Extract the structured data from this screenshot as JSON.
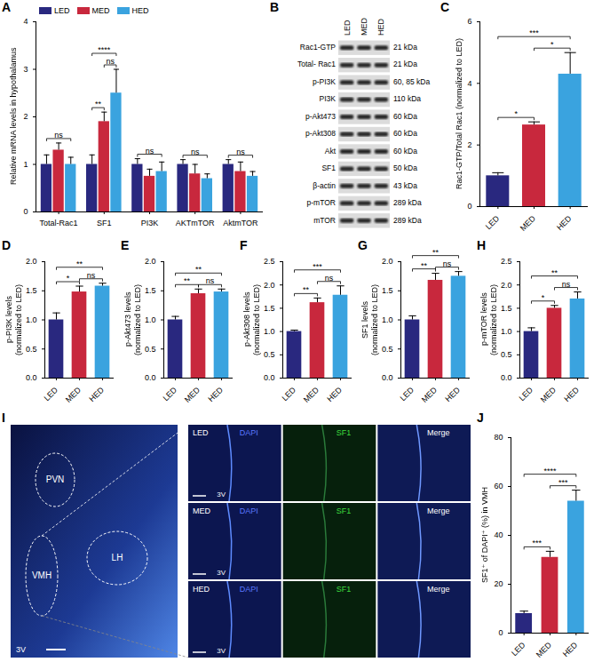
{
  "chart_data": [
    {
      "panel": "A",
      "type": "bar",
      "ylabel": "Relative mRNA levels in hypothalamus",
      "categories": [
        "Total-Rac1",
        "SF1",
        "PI3K",
        "AKTmTOR",
        "AktmTOR"
      ],
      "series": [
        {
          "name": "LED",
          "color": "#29287f",
          "values": [
            1.0,
            1.0,
            1.0,
            1.0,
            1.0
          ],
          "errors": [
            0.2,
            0.2,
            0.12,
            0.1,
            0.1
          ]
        },
        {
          "name": "MED",
          "color": "#c8283d",
          "values": [
            1.3,
            1.9,
            0.75,
            0.8,
            0.85
          ],
          "errors": [
            0.15,
            0.2,
            0.15,
            0.2,
            0.2
          ]
        },
        {
          "name": "HED",
          "color": "#3aa3df",
          "values": [
            1.0,
            2.5,
            0.85,
            0.7,
            0.75
          ],
          "errors": [
            0.15,
            0.5,
            0.2,
            0.1,
            0.1
          ]
        }
      ],
      "ylim": [
        0,
        4
      ],
      "yticks": [
        0,
        1,
        2,
        3,
        4
      ],
      "legend": "top-left",
      "significance": [
        {
          "category": "Total-Rac1",
          "pair": [
            "LED",
            "HED"
          ],
          "label": "ns"
        },
        {
          "category": "SF1",
          "pair": [
            "LED",
            "MED"
          ],
          "label": "**"
        },
        {
          "category": "SF1",
          "pair": [
            "MED",
            "HED"
          ],
          "label": "ns"
        },
        {
          "category": "SF1",
          "pair": [
            "LED",
            "HED"
          ],
          "label": "****"
        },
        {
          "category": "PI3K",
          "pair": [
            "LED",
            "HED"
          ],
          "label": "ns"
        },
        {
          "category": "AKTmTOR",
          "pair": [
            "LED",
            "HED"
          ],
          "label": "ns"
        },
        {
          "category": "AktmTOR",
          "pair": [
            "LED",
            "HED"
          ],
          "label": "ns"
        }
      ]
    },
    {
      "panel": "C",
      "type": "bar",
      "ylabel": "Rac1-GTP/Total Rac1 (normalized to LED)",
      "categories": [
        "LED",
        "MED",
        "HED"
      ],
      "values": [
        1.0,
        2.65,
        4.3
      ],
      "errors": [
        0.1,
        0.1,
        0.7
      ],
      "colors": [
        "#29287f",
        "#c8283d",
        "#3aa3df"
      ],
      "ylim": [
        0,
        6
      ],
      "yticks": [
        0,
        2,
        4,
        6
      ],
      "significance": [
        {
          "pair": [
            "LED",
            "MED"
          ],
          "label": "*"
        },
        {
          "pair": [
            "LED",
            "HED"
          ],
          "label": "***"
        },
        {
          "pair": [
            "MED",
            "HED"
          ],
          "label": "*"
        }
      ]
    },
    {
      "panel": "D",
      "type": "bar",
      "ylabel": "p-PI3K levels (normalized to LED)",
      "categories": [
        "LED",
        "MED",
        "HED"
      ],
      "values": [
        1.0,
        1.48,
        1.58
      ],
      "errors": [
        0.12,
        0.1,
        0.05
      ],
      "colors": [
        "#29287f",
        "#c8283d",
        "#3aa3df"
      ],
      "ylim": [
        0,
        2
      ],
      "yticks": [
        {
          "value": 0,
          "label": "0.0"
        },
        0.5,
        {
          "value": 1,
          "label": "1.0"
        },
        1.5,
        {
          "value": 2,
          "label": "2.0"
        }
      ],
      "significance": [
        {
          "pair": [
            "LED",
            "MED"
          ],
          "label": "*"
        },
        {
          "pair": [
            "LED",
            "HED"
          ],
          "label": "**"
        },
        {
          "pair": [
            "MED",
            "HED"
          ],
          "label": "ns"
        }
      ]
    },
    {
      "panel": "E",
      "type": "bar",
      "ylabel": "p-Akt473 levels (normalized to LED)",
      "categories": [
        "LED",
        "MED",
        "HED"
      ],
      "values": [
        1.0,
        1.45,
        1.48
      ],
      "errors": [
        0.06,
        0.08,
        0.05
      ],
      "colors": [
        "#29287f",
        "#c8283d",
        "#3aa3df"
      ],
      "ylim": [
        0,
        2
      ],
      "yticks": [
        {
          "value": 0,
          "label": "0.0"
        },
        0.5,
        {
          "value": 1,
          "label": "1.0"
        },
        1.5,
        {
          "value": 2,
          "label": "2.0"
        }
      ],
      "significance": [
        {
          "pair": [
            "LED",
            "MED"
          ],
          "label": "**"
        },
        {
          "pair": [
            "LED",
            "HED"
          ],
          "label": "**"
        },
        {
          "pair": [
            "MED",
            "HED"
          ],
          "label": "ns"
        }
      ]
    },
    {
      "panel": "F",
      "type": "bar",
      "ylabel": "p-Akt308 levels (normalized to LED)",
      "categories": [
        "LED",
        "MED",
        "HED"
      ],
      "values": [
        1.0,
        1.62,
        1.78
      ],
      "errors": [
        0.03,
        0.1,
        0.2
      ],
      "colors": [
        "#29287f",
        "#c8283d",
        "#3aa3df"
      ],
      "ylim": [
        0,
        2.5
      ],
      "yticks": [
        {
          "value": 0,
          "label": "0.0"
        },
        0.5,
        {
          "value": 1,
          "label": "1.0"
        },
        1.5,
        {
          "value": 2,
          "label": "2.0"
        },
        2.5
      ],
      "significance": [
        {
          "pair": [
            "LED",
            "MED"
          ],
          "label": "**"
        },
        {
          "pair": [
            "LED",
            "HED"
          ],
          "label": "***"
        },
        {
          "pair": [
            "MED",
            "HED"
          ],
          "label": "ns"
        }
      ]
    },
    {
      "panel": "G",
      "type": "bar",
      "ylabel": "SF1 levels (normalized to LED)",
      "categories": [
        "LED",
        "MED",
        "HED"
      ],
      "values": [
        1.0,
        1.68,
        1.75
      ],
      "errors": [
        0.07,
        0.12,
        0.08
      ],
      "colors": [
        "#29287f",
        "#c8283d",
        "#3aa3df"
      ],
      "ylim": [
        0,
        2
      ],
      "yticks": [
        {
          "value": 0,
          "label": "0.0"
        },
        0.5,
        {
          "value": 1,
          "label": "1.0"
        },
        1.5,
        {
          "value": 2,
          "label": "2.0"
        }
      ],
      "significance": [
        {
          "pair": [
            "LED",
            "MED"
          ],
          "label": "**"
        },
        {
          "pair": [
            "LED",
            "HED"
          ],
          "label": "**"
        },
        {
          "pair": [
            "MED",
            "HED"
          ],
          "label": "ns"
        }
      ]
    },
    {
      "panel": "H",
      "type": "bar",
      "ylabel": "p-mTOR levels (normalized to LED)",
      "categories": [
        "LED",
        "MED",
        "HED"
      ],
      "values": [
        1.0,
        1.5,
        1.7
      ],
      "errors": [
        0.08,
        0.06,
        0.15
      ],
      "colors": [
        "#29287f",
        "#c8283d",
        "#3aa3df"
      ],
      "ylim": [
        0,
        2.5
      ],
      "yticks": [
        {
          "value": 0,
          "label": "0.0"
        },
        0.5,
        {
          "value": 1,
          "label": "1.0"
        },
        1.5,
        {
          "value": 2,
          "label": "2.0"
        },
        2.5
      ],
      "significance": [
        {
          "pair": [
            "LED",
            "MED"
          ],
          "label": "*"
        },
        {
          "pair": [
            "LED",
            "HED"
          ],
          "label": "**"
        },
        {
          "pair": [
            "MED",
            "HED"
          ],
          "label": "ns"
        }
      ]
    },
    {
      "panel": "J",
      "type": "bar",
      "ylabel": "SF1⁺ of DAPI⁺ (%) in VMH",
      "categories": [
        "LED",
        "MED",
        "HED"
      ],
      "values": [
        8,
        31,
        54
      ],
      "errors": [
        1,
        2.5,
        4.5
      ],
      "colors": [
        "#29287f",
        "#c8283d",
        "#3aa3df"
      ],
      "ylim": [
        0,
        80
      ],
      "yticks": [
        0,
        20,
        40,
        60,
        80
      ],
      "significance": [
        {
          "pair": [
            "LED",
            "MED"
          ],
          "label": "***"
        },
        {
          "pair": [
            "LED",
            "HED"
          ],
          "label": "****"
        },
        {
          "pair": [
            "MED",
            "HED"
          ],
          "label": "***"
        }
      ]
    }
  ],
  "blot": {
    "panel": "B",
    "lanes": [
      "LED",
      "MED",
      "HED"
    ],
    "rows": [
      {
        "label": "Rac1-GTP",
        "size": "21 kDa"
      },
      {
        "label": "Total- Rac1",
        "size": "21 kDa"
      },
      {
        "label": "p-PI3K",
        "size": "60, 85 kDa"
      },
      {
        "label": "PI3K",
        "size": "110 kDa"
      },
      {
        "label": "p-Akt473",
        "size": "60 kDa"
      },
      {
        "label": "p-Akt308",
        "size": "60 kDa"
      },
      {
        "label": "Akt",
        "size": "60 kDa"
      },
      {
        "label": "SF1",
        "size": "50 kDa"
      },
      {
        "label": "β-actin",
        "size": "43 kDa"
      },
      {
        "label": "p-mTOR",
        "size": "289 kDa"
      },
      {
        "label": "mTOR",
        "size": "289 kDa"
      }
    ]
  },
  "micrograph": {
    "panel": "I",
    "regions": [
      "PVN",
      "VMH",
      "LH"
    ],
    "landmark": "3V",
    "channels": [
      "DAPI",
      "SF1",
      "Merge"
    ],
    "groups": [
      "LED",
      "MED",
      "HED"
    ]
  }
}
